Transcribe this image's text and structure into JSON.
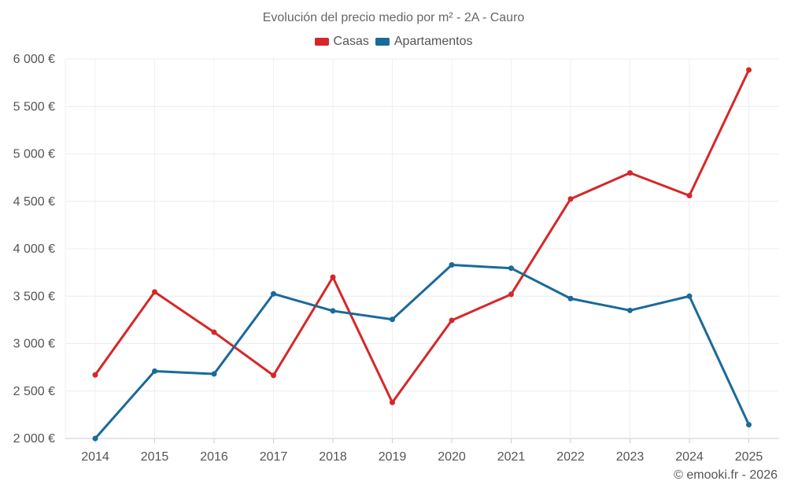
{
  "chart_data": {
    "type": "line",
    "title": "Evolución del precio medio por m² - 2A - Cauro",
    "categories": [
      "2014",
      "2015",
      "2016",
      "2017",
      "2018",
      "2019",
      "2020",
      "2021",
      "2022",
      "2023",
      "2024",
      "2025"
    ],
    "series": [
      {
        "name": "Casas",
        "color": "#d62728",
        "values": [
          2670,
          3545,
          3120,
          2665,
          3700,
          2380,
          3245,
          3520,
          4525,
          4800,
          4560,
          5885
        ]
      },
      {
        "name": "Apartamentos",
        "color": "#1a6a9a",
        "values": [
          2000,
          2710,
          2680,
          3525,
          3345,
          3255,
          3830,
          3795,
          3475,
          3350,
          3500,
          2145
        ]
      }
    ],
    "ylim": [
      2000,
      6000
    ],
    "yticks": [
      2000,
      2500,
      3000,
      3500,
      4000,
      4500,
      5000,
      5500,
      6000
    ],
    "ytick_labels": [
      "2 000 €",
      "2 500 €",
      "3 000 €",
      "3 500 €",
      "4 000 €",
      "4 500 €",
      "5 000 €",
      "5 500 €",
      "6 000 €"
    ],
    "grid": true,
    "legend_position": "top-center"
  },
  "credit": "© emooki.fr - 2026"
}
